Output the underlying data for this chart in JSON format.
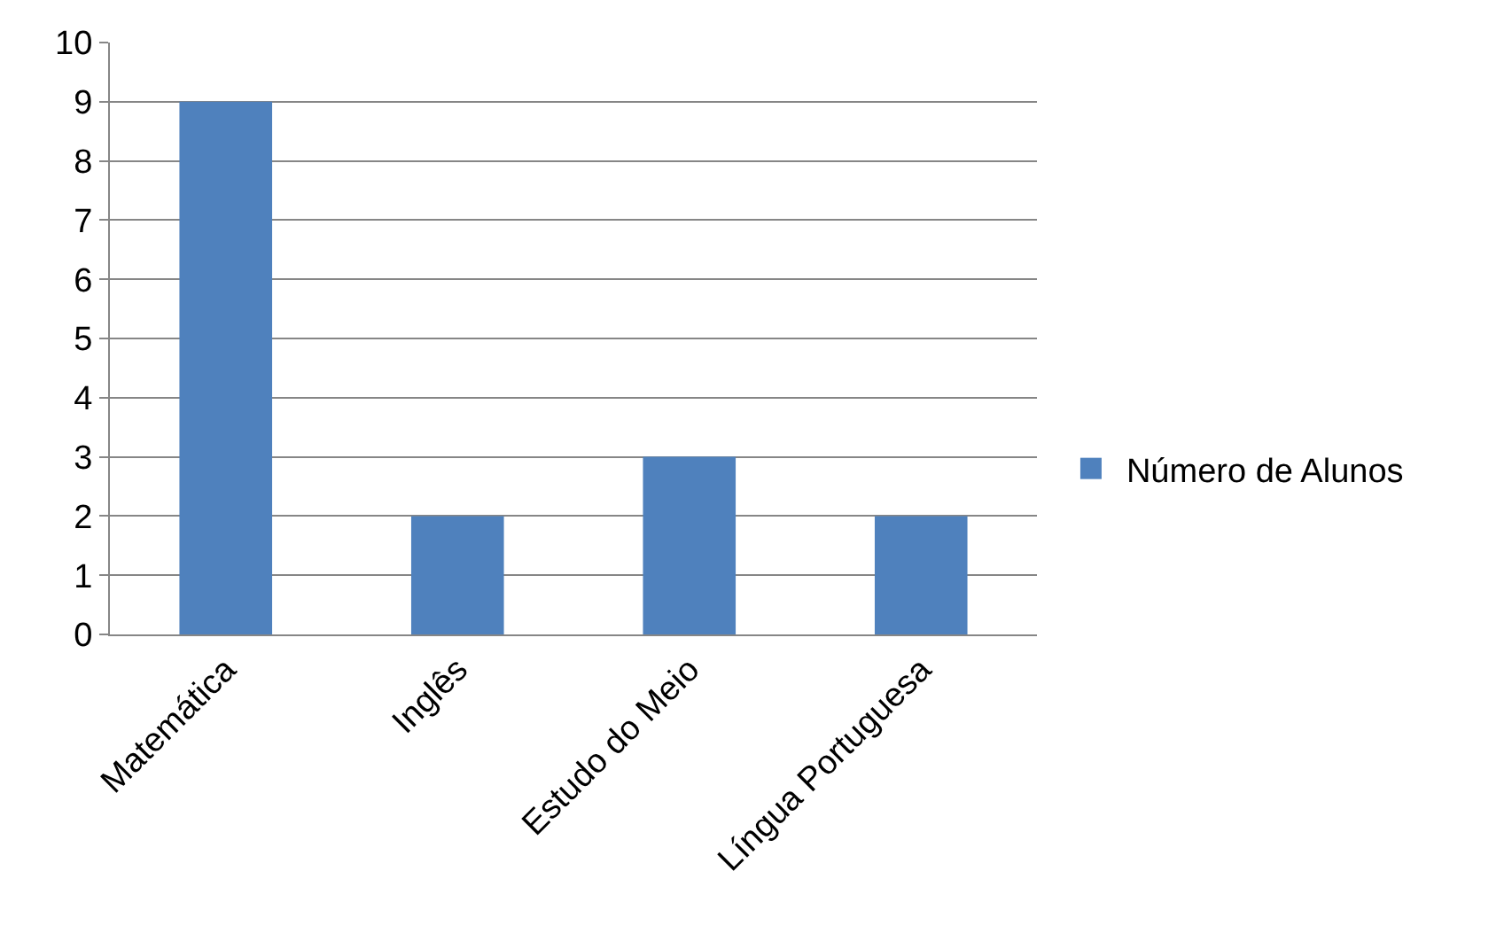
{
  "chart_data": {
    "type": "bar",
    "categories": [
      "Matemática",
      "Inglês",
      "Estudo do Meio",
      "Língua Portuguesa"
    ],
    "series": [
      {
        "name": "Número de Alunos",
        "color": "#4f81bd",
        "values": [
          9,
          2,
          3,
          2
        ]
      }
    ],
    "ylim": [
      0,
      10
    ],
    "yticks": [
      0,
      1,
      2,
      3,
      4,
      5,
      6,
      7,
      8,
      9,
      10
    ],
    "grid": "y",
    "legend": "right"
  }
}
